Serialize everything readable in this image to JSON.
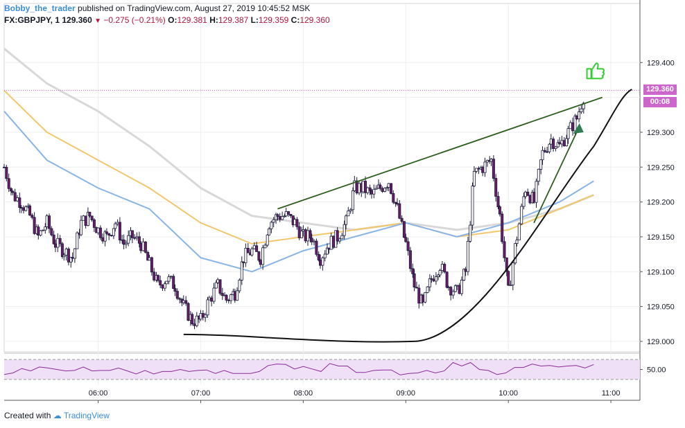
{
  "header": {
    "author": "Bobby_the_trader",
    "published": "published on TradingView.com, August 27, 2019 10:45:52 MSK",
    "symbol": "FX:GBPJPY, 1",
    "last": "129.360",
    "change": "−0.275 (−0.21%)",
    "o_label": "O:",
    "o_value": "129.381",
    "h_label": "H:",
    "h_value": "129.387",
    "l_label": "L:",
    "l_value": "129.359",
    "c_label": "C:",
    "c_value": "129.360"
  },
  "price_badge": {
    "value": "129.360",
    "countdown": "00:08"
  },
  "footer": {
    "created": "Created with",
    "brand": "TradingView"
  },
  "colors": {
    "candle_up": "#ffffff",
    "candle_down": "#6a1b6a",
    "candle_outline": "#1a1a3a",
    "ma_fast": "#88b4e7",
    "ma_mid": "#f2c76b",
    "ma_slow": "#d8d8d8",
    "trendline": "#2e5e1e",
    "curve": "#111111",
    "rsi_line": "#8a2a9a",
    "rsi_band": "#efe0f7",
    "thumb": "#33cc33",
    "arrow": "#2e7d4e",
    "price_line": "#cc66cc"
  },
  "chart_data": [
    {
      "type": "candlestick",
      "title": "",
      "xlabel": "",
      "ylabel": "",
      "x_ticks": [
        "06:00",
        "07:00",
        "08:00",
        "09:00",
        "10:00",
        "11:00"
      ],
      "x_range": [
        "05:05",
        "11:17"
      ],
      "y_ticks": [
        129.0,
        129.05,
        129.1,
        129.15,
        129.2,
        129.25,
        129.3,
        129.35,
        129.4
      ],
      "y_tick_labels": [
        "129.000",
        "129.050",
        "129.100",
        "129.150",
        "129.200",
        "129.250",
        "129.300",
        "",
        "129.400"
      ],
      "ylim": [
        128.985,
        129.445
      ],
      "last_price": 129.36,
      "close_path": [
        [
          "05:05",
          129.25
        ],
        [
          "05:10",
          129.21
        ],
        [
          "05:15",
          129.2
        ],
        [
          "05:20",
          129.18
        ],
        [
          "05:25",
          129.15
        ],
        [
          "05:30",
          129.17
        ],
        [
          "05:35",
          129.14
        ],
        [
          "05:40",
          129.13
        ],
        [
          "05:45",
          129.12
        ],
        [
          "05:50",
          129.17
        ],
        [
          "05:55",
          129.18
        ],
        [
          "06:00",
          129.16
        ],
        [
          "06:05",
          129.15
        ],
        [
          "06:10",
          129.17
        ],
        [
          "06:15",
          129.14
        ],
        [
          "06:20",
          129.15
        ],
        [
          "06:25",
          129.14
        ],
        [
          "06:30",
          129.11
        ],
        [
          "06:35",
          129.08
        ],
        [
          "06:40",
          129.09
        ],
        [
          "06:45",
          129.08
        ],
        [
          "06:50",
          129.05
        ],
        [
          "06:55",
          129.03
        ],
        [
          "07:00",
          129.03
        ],
        [
          "07:05",
          129.06
        ],
        [
          "07:10",
          129.08
        ],
        [
          "07:15",
          129.06
        ],
        [
          "07:20",
          129.07
        ],
        [
          "07:25",
          129.12
        ],
        [
          "07:30",
          129.13
        ],
        [
          "07:35",
          129.12
        ],
        [
          "07:40",
          129.17
        ],
        [
          "07:45",
          129.18
        ],
        [
          "07:50",
          129.18
        ],
        [
          "07:55",
          129.17
        ],
        [
          "08:00",
          129.15
        ],
        [
          "08:05",
          129.15
        ],
        [
          "08:10",
          129.12
        ],
        [
          "08:15",
          129.14
        ],
        [
          "08:20",
          129.15
        ],
        [
          "08:25",
          129.17
        ],
        [
          "08:30",
          129.22
        ],
        [
          "08:35",
          129.22
        ],
        [
          "08:40",
          129.21
        ],
        [
          "08:45",
          129.22
        ],
        [
          "08:50",
          129.23
        ],
        [
          "08:55",
          129.19
        ],
        [
          "09:00",
          129.14
        ],
        [
          "09:05",
          129.08
        ],
        [
          "09:10",
          129.05
        ],
        [
          "09:15",
          129.09
        ],
        [
          "09:20",
          129.11
        ],
        [
          "09:25",
          129.08
        ],
        [
          "09:30",
          129.07
        ],
        [
          "09:35",
          129.1
        ],
        [
          "09:40",
          129.24
        ],
        [
          "09:45",
          129.25
        ],
        [
          "09:50",
          129.26
        ],
        [
          "09:55",
          129.18
        ],
        [
          "10:00",
          129.07
        ],
        [
          "10:05",
          129.15
        ],
        [
          "10:10",
          129.22
        ],
        [
          "10:15",
          129.2
        ],
        [
          "10:20",
          129.27
        ],
        [
          "10:25",
          129.29
        ],
        [
          "10:30",
          129.28
        ],
        [
          "10:35",
          129.3
        ],
        [
          "10:40",
          129.32
        ],
        [
          "10:45",
          129.36
        ]
      ],
      "moving_averages": [
        {
          "points": [
            [
              "05:05",
              129.33
            ],
            [
              "05:30",
              129.26
            ],
            [
              "06:00",
              129.22
            ],
            [
              "06:30",
              129.19
            ],
            [
              "07:00",
              129.12
            ],
            [
              "07:30",
              129.1
            ],
            [
              "08:00",
              129.13
            ],
            [
              "08:30",
              129.15
            ],
            [
              "09:00",
              129.17
            ],
            [
              "09:30",
              129.15
            ],
            [
              "10:00",
              129.17
            ],
            [
              "10:30",
              129.2
            ],
            [
              "10:50",
              129.23
            ]
          ]
        },
        {
          "points": [
            [
              "05:05",
              129.36
            ],
            [
              "05:30",
              129.3
            ],
            [
              "06:00",
              129.26
            ],
            [
              "06:30",
              129.22
            ],
            [
              "07:00",
              129.17
            ],
            [
              "07:30",
              129.14
            ],
            [
              "08:00",
              129.15
            ],
            [
              "08:30",
              129.16
            ],
            [
              "09:00",
              129.17
            ],
            [
              "09:30",
              129.15
            ],
            [
              "10:00",
              129.16
            ],
            [
              "10:30",
              129.19
            ],
            [
              "10:50",
              129.21
            ]
          ]
        },
        {
          "points": [
            [
              "05:05",
              129.42
            ],
            [
              "05:30",
              129.37
            ],
            [
              "06:00",
              129.33
            ],
            [
              "06:30",
              129.28
            ],
            [
              "07:00",
              129.22
            ],
            [
              "07:30",
              129.18
            ],
            [
              "08:00",
              129.17
            ],
            [
              "08:30",
              129.16
            ],
            [
              "09:00",
              129.17
            ],
            [
              "09:30",
              129.16
            ],
            [
              "10:00",
              129.17
            ],
            [
              "10:30",
              129.19
            ],
            [
              "10:50",
              129.21
            ]
          ]
        }
      ],
      "drawings": [
        {
          "kind": "trendline",
          "from": [
            "07:45",
            129.19
          ],
          "to": [
            "10:55",
            129.35
          ]
        },
        {
          "kind": "trendline",
          "from": [
            "10:15",
            129.17
          ],
          "to": [
            "10:40",
            129.3
          ]
        },
        {
          "kind": "rounded-bottom-curve",
          "from": [
            "06:50",
            129.01
          ],
          "via": [
            "09:05",
            129.0
          ],
          "to": [
            "10:50",
            129.28
          ]
        }
      ]
    },
    {
      "type": "line",
      "title": "",
      "y_ticks": [
        50
      ],
      "y_tick_labels": [
        "50.00"
      ],
      "ylim": [
        20,
        80
      ],
      "bands": [
        30,
        70
      ],
      "series": [
        {
          "values": [
            40,
            46,
            50,
            48,
            52,
            55,
            49,
            47,
            51,
            53,
            48,
            45,
            50,
            52,
            47,
            44,
            46,
            42,
            43,
            48,
            49,
            46,
            51,
            47,
            43,
            45,
            44,
            41,
            42,
            49,
            56,
            62,
            57,
            53,
            55,
            51,
            49,
            60,
            58,
            54,
            46,
            43,
            48,
            52,
            47,
            40,
            39,
            45,
            47,
            43,
            50,
            62,
            58,
            61,
            52,
            47,
            40,
            46,
            52,
            55,
            58,
            59,
            57,
            55,
            60,
            56,
            54,
            57
          ]
        }
      ]
    }
  ]
}
